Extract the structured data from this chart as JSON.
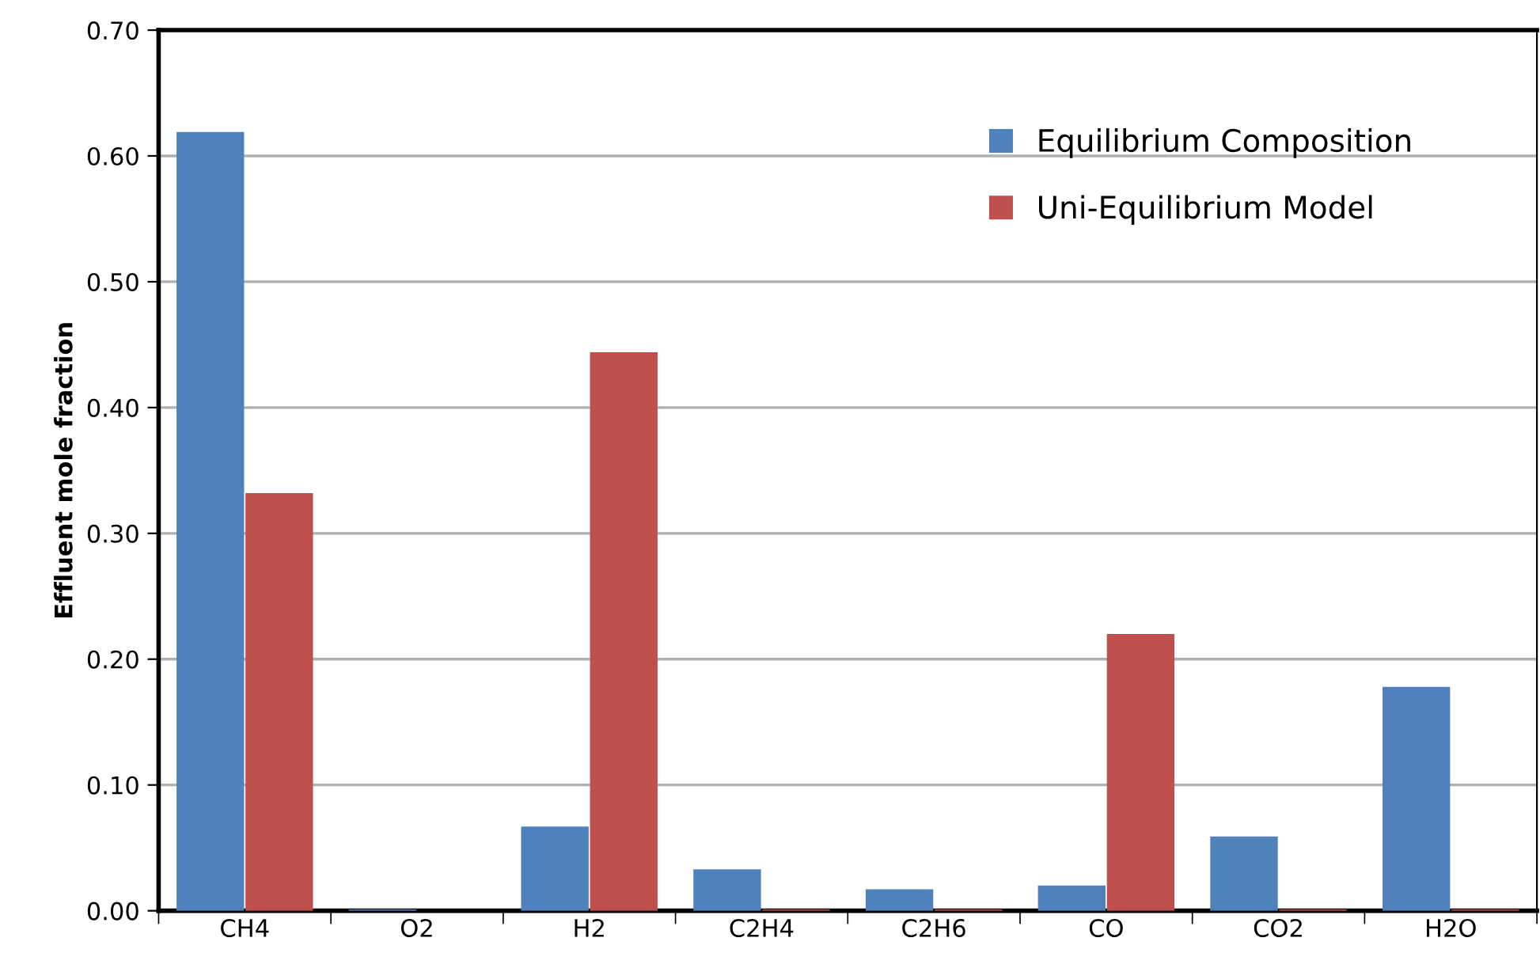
{
  "chart_data": {
    "type": "bar",
    "ylabel": "Effluent mole fraction",
    "categories": [
      "CH4",
      "O2",
      "H2",
      "C2H4",
      "C2H6",
      "CO",
      "CO2",
      "H2O"
    ],
    "series": [
      {
        "name": "Equilibrium Composition",
        "color": "#4f81bd",
        "values": [
          0.619,
          0.001,
          0.067,
          0.033,
          0.017,
          0.02,
          0.059,
          0.178
        ]
      },
      {
        "name": "Uni-Equilibrium Model",
        "color": "#c0504d",
        "values": [
          0.332,
          0.0,
          0.444,
          0.001,
          0.001,
          0.22,
          0.001,
          0.001
        ]
      }
    ],
    "ylim": [
      0,
      0.7
    ],
    "yticks": [
      {
        "value": 0,
        "label": "0.00"
      },
      {
        "value": 0.1,
        "label": "0.10"
      },
      {
        "value": 0.2,
        "label": "0.20"
      },
      {
        "value": 0.3,
        "label": "0.30"
      },
      {
        "value": 0.4,
        "label": "0.40"
      },
      {
        "value": 0.5,
        "label": "0.50"
      },
      {
        "value": 0.6,
        "label": "0.60"
      },
      {
        "value": 0.7,
        "label": "0.70"
      }
    ],
    "grid": "y",
    "legend": "top right"
  }
}
